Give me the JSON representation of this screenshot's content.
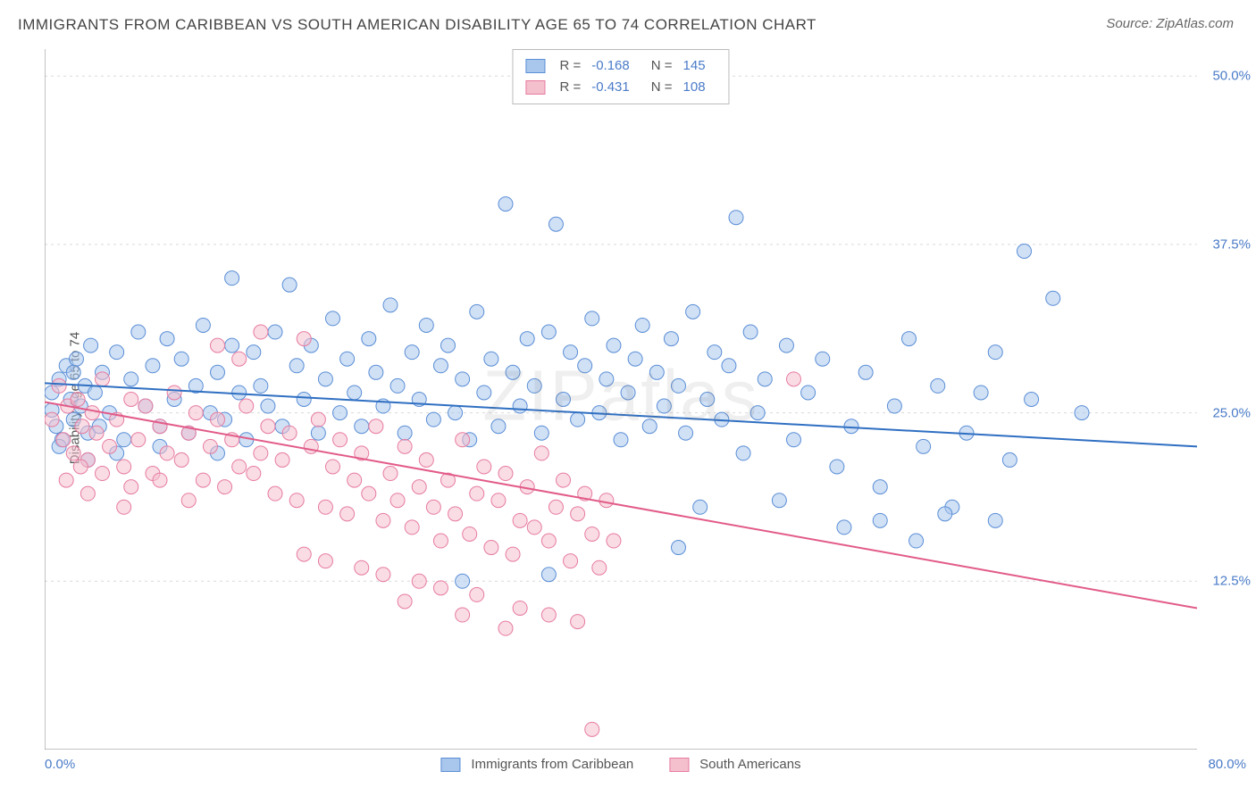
{
  "title": "IMMIGRANTS FROM CARIBBEAN VS SOUTH AMERICAN DISABILITY AGE 65 TO 74 CORRELATION CHART",
  "source_label": "Source: ",
  "source_value": "ZipAtlas.com",
  "watermark": "ZIPatlas",
  "chart": {
    "type": "scatter",
    "ylabel": "Disability Age 65 to 74",
    "xlim": [
      0,
      80
    ],
    "ylim": [
      0,
      52
    ],
    "x_ticks": {
      "min_label": "0.0%",
      "max_label": "80.0%"
    },
    "y_ticks": [
      {
        "value": 12.5,
        "label": "12.5%"
      },
      {
        "value": 25.0,
        "label": "25.0%"
      },
      {
        "value": 37.5,
        "label": "37.5%"
      },
      {
        "value": 50.0,
        "label": "50.0%"
      }
    ],
    "grid_color": "#d9d9d9",
    "axis_color": "#888888",
    "background_color": "#ffffff",
    "marker_radius": 8,
    "marker_opacity": 0.55,
    "line_width": 2,
    "series": [
      {
        "name": "Immigrants from Caribbean",
        "fill": "#a9c7ec",
        "stroke": "#5a8ed6",
        "line_color": "#2f6fc2",
        "R": "-0.168",
        "N": "145",
        "trend": {
          "x1": 0,
          "y1": 27.2,
          "x2": 80,
          "y2": 22.5
        },
        "points": [
          [
            0.5,
            25.2
          ],
          [
            0.8,
            24.0
          ],
          [
            1.0,
            27.5
          ],
          [
            1.2,
            23.0
          ],
          [
            1.5,
            28.5
          ],
          [
            1.8,
            26.0
          ],
          [
            2.0,
            24.5
          ],
          [
            2.2,
            29.0
          ],
          [
            2.5,
            25.5
          ],
          [
            2.8,
            27.0
          ],
          [
            3.0,
            23.5
          ],
          [
            3.2,
            30.0
          ],
          [
            3.5,
            26.5
          ],
          [
            3.8,
            24.0
          ],
          [
            4.0,
            28.0
          ],
          [
            4.5,
            25.0
          ],
          [
            5.0,
            29.5
          ],
          [
            5.5,
            23.0
          ],
          [
            6.0,
            27.5
          ],
          [
            6.5,
            31.0
          ],
          [
            7.0,
            25.5
          ],
          [
            7.5,
            28.5
          ],
          [
            8.0,
            24.0
          ],
          [
            8.5,
            30.5
          ],
          [
            9.0,
            26.0
          ],
          [
            9.5,
            29.0
          ],
          [
            10.0,
            23.5
          ],
          [
            10.5,
            27.0
          ],
          [
            11.0,
            31.5
          ],
          [
            11.5,
            25.0
          ],
          [
            12.0,
            28.0
          ],
          [
            12.5,
            24.5
          ],
          [
            13.0,
            30.0
          ],
          [
            13.5,
            26.5
          ],
          [
            14.0,
            23.0
          ],
          [
            14.5,
            29.5
          ],
          [
            15.0,
            27.0
          ],
          [
            15.5,
            25.5
          ],
          [
            16.0,
            31.0
          ],
          [
            16.5,
            24.0
          ],
          [
            17.0,
            34.5
          ],
          [
            17.5,
            28.5
          ],
          [
            18.0,
            26.0
          ],
          [
            18.5,
            30.0
          ],
          [
            19.0,
            23.5
          ],
          [
            19.5,
            27.5
          ],
          [
            20.0,
            32.0
          ],
          [
            20.5,
            25.0
          ],
          [
            21.0,
            29.0
          ],
          [
            21.5,
            26.5
          ],
          [
            22.0,
            24.0
          ],
          [
            22.5,
            30.5
          ],
          [
            23.0,
            28.0
          ],
          [
            23.5,
            25.5
          ],
          [
            24.0,
            33.0
          ],
          [
            24.5,
            27.0
          ],
          [
            25.0,
            23.5
          ],
          [
            25.5,
            29.5
          ],
          [
            26.0,
            26.0
          ],
          [
            26.5,
            31.5
          ],
          [
            27.0,
            24.5
          ],
          [
            27.5,
            28.5
          ],
          [
            28.0,
            30.0
          ],
          [
            28.5,
            25.0
          ],
          [
            29.0,
            27.5
          ],
          [
            29.5,
            23.0
          ],
          [
            30.0,
            32.5
          ],
          [
            30.5,
            26.5
          ],
          [
            31.0,
            29.0
          ],
          [
            31.5,
            24.0
          ],
          [
            32.0,
            40.5
          ],
          [
            32.5,
            28.0
          ],
          [
            33.0,
            25.5
          ],
          [
            33.5,
            30.5
          ],
          [
            34.0,
            27.0
          ],
          [
            34.5,
            23.5
          ],
          [
            35.0,
            31.0
          ],
          [
            35.5,
            39.0
          ],
          [
            36.0,
            26.0
          ],
          [
            36.5,
            29.5
          ],
          [
            37.0,
            24.5
          ],
          [
            37.5,
            28.5
          ],
          [
            38.0,
            32.0
          ],
          [
            38.5,
            25.0
          ],
          [
            39.0,
            27.5
          ],
          [
            39.5,
            30.0
          ],
          [
            40.0,
            23.0
          ],
          [
            40.5,
            26.5
          ],
          [
            41.0,
            29.0
          ],
          [
            41.5,
            31.5
          ],
          [
            42.0,
            24.0
          ],
          [
            42.5,
            28.0
          ],
          [
            43.0,
            25.5
          ],
          [
            43.5,
            30.5
          ],
          [
            44.0,
            27.0
          ],
          [
            44.5,
            23.5
          ],
          [
            45.0,
            32.5
          ],
          [
            45.5,
            18.0
          ],
          [
            46.0,
            26.0
          ],
          [
            46.5,
            29.5
          ],
          [
            47.0,
            24.5
          ],
          [
            47.5,
            28.5
          ],
          [
            48.0,
            39.5
          ],
          [
            48.5,
            22.0
          ],
          [
            49.0,
            31.0
          ],
          [
            49.5,
            25.0
          ],
          [
            50.0,
            27.5
          ],
          [
            51.0,
            18.5
          ],
          [
            51.5,
            30.0
          ],
          [
            52.0,
            23.0
          ],
          [
            53.0,
            26.5
          ],
          [
            54.0,
            29.0
          ],
          [
            55.0,
            21.0
          ],
          [
            56.0,
            24.0
          ],
          [
            57.0,
            28.0
          ],
          [
            58.0,
            19.5
          ],
          [
            59.0,
            25.5
          ],
          [
            60.0,
            30.5
          ],
          [
            61.0,
            22.5
          ],
          [
            62.0,
            27.0
          ],
          [
            63.0,
            18.0
          ],
          [
            64.0,
            23.5
          ],
          [
            65.0,
            26.5
          ],
          [
            66.0,
            29.5
          ],
          [
            67.0,
            21.5
          ],
          [
            68.0,
            37.0
          ],
          [
            70.0,
            33.5
          ],
          [
            72.0,
            25.0
          ],
          [
            68.5,
            26.0
          ],
          [
            62.5,
            17.5
          ],
          [
            35.0,
            13.0
          ],
          [
            29.0,
            12.5
          ],
          [
            55.5,
            16.5
          ],
          [
            58.0,
            17.0
          ],
          [
            60.5,
            15.5
          ],
          [
            44.0,
            15.0
          ],
          [
            66.0,
            17.0
          ],
          [
            12.0,
            22.0
          ],
          [
            8.0,
            22.5
          ],
          [
            5.0,
            22.0
          ],
          [
            3.0,
            21.5
          ],
          [
            1.0,
            22.5
          ],
          [
            0.5,
            26.5
          ],
          [
            2.0,
            28.0
          ],
          [
            13.0,
            35.0
          ]
        ]
      },
      {
        "name": "South Americans",
        "fill": "#f4c0cd",
        "stroke": "#e77ba0",
        "line_color": "#e25b88",
        "R": "-0.431",
        "N": "108",
        "trend": {
          "x1": 0,
          "y1": 25.8,
          "x2": 80,
          "y2": 10.5
        },
        "points": [
          [
            0.5,
            24.5
          ],
          [
            1.0,
            27.0
          ],
          [
            1.3,
            23.0
          ],
          [
            1.6,
            25.5
          ],
          [
            2.0,
            22.0
          ],
          [
            2.3,
            26.0
          ],
          [
            2.6,
            24.0
          ],
          [
            3.0,
            21.5
          ],
          [
            3.3,
            25.0
          ],
          [
            3.6,
            23.5
          ],
          [
            4.0,
            27.5
          ],
          [
            4.5,
            22.5
          ],
          [
            5.0,
            24.5
          ],
          [
            5.5,
            21.0
          ],
          [
            6.0,
            26.0
          ],
          [
            6.5,
            23.0
          ],
          [
            7.0,
            25.5
          ],
          [
            7.5,
            20.5
          ],
          [
            8.0,
            24.0
          ],
          [
            8.5,
            22.0
          ],
          [
            9.0,
            26.5
          ],
          [
            9.5,
            21.5
          ],
          [
            10.0,
            23.5
          ],
          [
            10.5,
            25.0
          ],
          [
            11.0,
            20.0
          ],
          [
            11.5,
            22.5
          ],
          [
            12.0,
            24.5
          ],
          [
            12.5,
            19.5
          ],
          [
            13.0,
            23.0
          ],
          [
            13.5,
            21.0
          ],
          [
            14.0,
            25.5
          ],
          [
            14.5,
            20.5
          ],
          [
            15.0,
            22.0
          ],
          [
            15.5,
            24.0
          ],
          [
            16.0,
            19.0
          ],
          [
            16.5,
            21.5
          ],
          [
            17.0,
            23.5
          ],
          [
            17.5,
            18.5
          ],
          [
            18.0,
            30.5
          ],
          [
            18.5,
            22.5
          ],
          [
            19.0,
            24.5
          ],
          [
            19.5,
            18.0
          ],
          [
            20.0,
            21.0
          ],
          [
            20.5,
            23.0
          ],
          [
            21.0,
            17.5
          ],
          [
            21.5,
            20.0
          ],
          [
            22.0,
            22.0
          ],
          [
            22.5,
            19.0
          ],
          [
            23.0,
            24.0
          ],
          [
            23.5,
            17.0
          ],
          [
            24.0,
            20.5
          ],
          [
            24.5,
            18.5
          ],
          [
            25.0,
            22.5
          ],
          [
            25.5,
            16.5
          ],
          [
            26.0,
            19.5
          ],
          [
            26.5,
            21.5
          ],
          [
            27.0,
            18.0
          ],
          [
            27.5,
            15.5
          ],
          [
            28.0,
            20.0
          ],
          [
            28.5,
            17.5
          ],
          [
            29.0,
            23.0
          ],
          [
            29.5,
            16.0
          ],
          [
            30.0,
            19.0
          ],
          [
            30.5,
            21.0
          ],
          [
            31.0,
            15.0
          ],
          [
            31.5,
            18.5
          ],
          [
            32.0,
            20.5
          ],
          [
            32.5,
            14.5
          ],
          [
            33.0,
            17.0
          ],
          [
            33.5,
            19.5
          ],
          [
            34.0,
            16.5
          ],
          [
            34.5,
            22.0
          ],
          [
            35.0,
            15.5
          ],
          [
            35.5,
            18.0
          ],
          [
            36.0,
            20.0
          ],
          [
            36.5,
            14.0
          ],
          [
            37.0,
            17.5
          ],
          [
            37.5,
            19.0
          ],
          [
            38.0,
            16.0
          ],
          [
            38.5,
            13.5
          ],
          [
            39.0,
            18.5
          ],
          [
            39.5,
            15.5
          ],
          [
            12.0,
            30.0
          ],
          [
            15.0,
            31.0
          ],
          [
            13.5,
            29.0
          ],
          [
            8.0,
            20.0
          ],
          [
            6.0,
            19.5
          ],
          [
            4.0,
            20.5
          ],
          [
            2.5,
            21.0
          ],
          [
            1.5,
            20.0
          ],
          [
            18.0,
            14.5
          ],
          [
            22.0,
            13.5
          ],
          [
            26.0,
            12.5
          ],
          [
            30.0,
            11.5
          ],
          [
            33.0,
            10.5
          ],
          [
            35.0,
            10.0
          ],
          [
            37.0,
            9.5
          ],
          [
            32.0,
            9.0
          ],
          [
            29.0,
            10.0
          ],
          [
            25.0,
            11.0
          ],
          [
            38.0,
            1.5
          ],
          [
            52.0,
            27.5
          ],
          [
            19.5,
            14.0
          ],
          [
            23.5,
            13.0
          ],
          [
            27.5,
            12.0
          ],
          [
            10.0,
            18.5
          ],
          [
            5.5,
            18.0
          ],
          [
            3.0,
            19.0
          ]
        ]
      }
    ]
  },
  "legend_bottom": [
    {
      "label": "Immigrants from Caribbean",
      "fill": "#a9c7ec",
      "stroke": "#5a8ed6"
    },
    {
      "label": "South Americans",
      "fill": "#f4c0cd",
      "stroke": "#e77ba0"
    }
  ]
}
